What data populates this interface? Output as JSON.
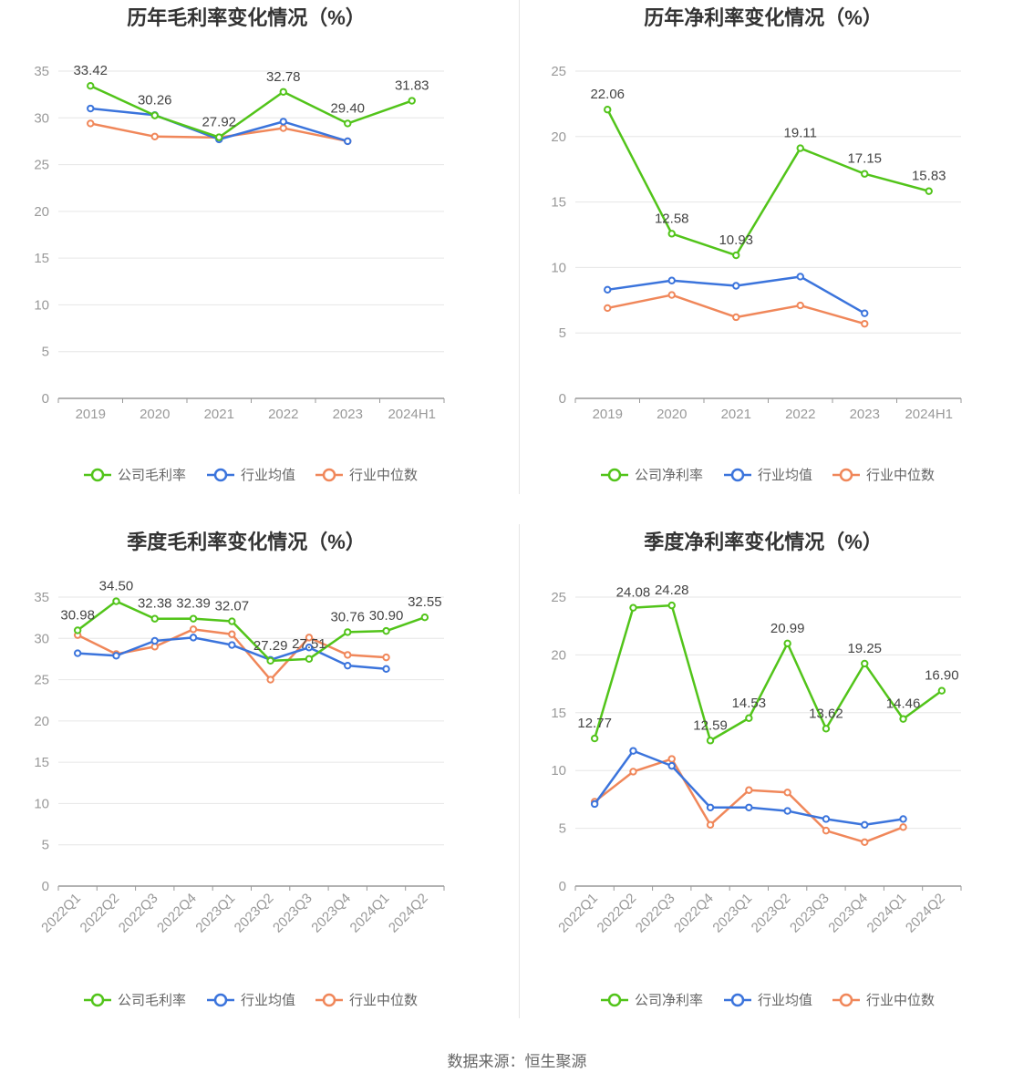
{
  "source_text": "数据来源：恒生聚源",
  "colors": {
    "company": "#52c41a",
    "avg": "#3b74dc",
    "median": "#f0875a",
    "grid": "#e6e6e6",
    "axis": "#999999"
  },
  "chart_data": [
    {
      "id": "annual-gross",
      "type": "line",
      "title": "历年毛利率变化情况（%）",
      "categories": [
        "2019",
        "2020",
        "2021",
        "2022",
        "2023",
        "2024H1"
      ],
      "ylim": [
        0,
        35
      ],
      "yticks": [
        0,
        5,
        10,
        15,
        20,
        25,
        30,
        35
      ],
      "x_label_rotate": false,
      "series": [
        {
          "name": "公司毛利率",
          "role": "company",
          "values": [
            33.42,
            30.26,
            27.92,
            32.78,
            29.4,
            31.83
          ],
          "labels": [
            "33.42",
            "30.26",
            "27.92",
            "32.78",
            "29.40",
            "31.83"
          ]
        },
        {
          "name": "行业均值",
          "role": "avg",
          "values": [
            31.0,
            30.3,
            27.7,
            29.6,
            27.5,
            null
          ]
        },
        {
          "name": "行业中位数",
          "role": "median",
          "values": [
            29.4,
            28.0,
            27.9,
            28.9,
            27.5,
            null
          ]
        }
      ]
    },
    {
      "id": "annual-net",
      "type": "line",
      "title": "历年净利率变化情况（%）",
      "categories": [
        "2019",
        "2020",
        "2021",
        "2022",
        "2023",
        "2024H1"
      ],
      "ylim": [
        0,
        25
      ],
      "yticks": [
        0,
        5,
        10,
        15,
        20,
        25
      ],
      "x_label_rotate": false,
      "series": [
        {
          "name": "公司净利率",
          "role": "company",
          "values": [
            22.06,
            12.58,
            10.93,
            19.11,
            17.15,
            15.83
          ],
          "labels": [
            "22.06",
            "12.58",
            "10.93",
            "19.11",
            "17.15",
            "15.83"
          ]
        },
        {
          "name": "行业均值",
          "role": "avg",
          "values": [
            8.3,
            9.0,
            8.6,
            9.3,
            6.5,
            null
          ]
        },
        {
          "name": "行业中位数",
          "role": "median",
          "values": [
            6.9,
            7.9,
            6.2,
            7.1,
            5.7,
            null
          ]
        }
      ]
    },
    {
      "id": "quarterly-gross",
      "type": "line",
      "title": "季度毛利率变化情况（%）",
      "categories": [
        "2022Q1",
        "2022Q2",
        "2022Q3",
        "2022Q4",
        "2023Q1",
        "2023Q2",
        "2023Q3",
        "2023Q4",
        "2024Q1",
        "2024Q2"
      ],
      "ylim": [
        0,
        35
      ],
      "yticks": [
        0,
        5,
        10,
        15,
        20,
        25,
        30,
        35
      ],
      "x_label_rotate": true,
      "series": [
        {
          "name": "公司毛利率",
          "role": "company",
          "values": [
            30.98,
            34.5,
            32.38,
            32.39,
            32.07,
            27.29,
            27.51,
            30.76,
            30.9,
            32.55
          ],
          "labels": [
            "30.98",
            "34.50",
            "32.38",
            "32.39",
            "32.07",
            "27.29",
            "27.51",
            "30.76",
            "30.90",
            "32.55"
          ]
        },
        {
          "name": "行业均值",
          "role": "avg",
          "values": [
            28.2,
            27.9,
            29.7,
            30.1,
            29.2,
            27.4,
            28.9,
            26.7,
            26.3,
            null
          ]
        },
        {
          "name": "行业中位数",
          "role": "median",
          "values": [
            30.4,
            28.1,
            29.0,
            31.1,
            30.5,
            25.0,
            30.1,
            28.0,
            27.7,
            null
          ]
        }
      ]
    },
    {
      "id": "quarterly-net",
      "type": "line",
      "title": "季度净利率变化情况（%）",
      "categories": [
        "2022Q1",
        "2022Q2",
        "2022Q3",
        "2022Q4",
        "2023Q1",
        "2023Q2",
        "2023Q3",
        "2023Q4",
        "2024Q1",
        "2024Q2"
      ],
      "ylim": [
        0,
        25
      ],
      "yticks": [
        0,
        5,
        10,
        15,
        20,
        25
      ],
      "x_label_rotate": true,
      "series": [
        {
          "name": "公司净利率",
          "role": "company",
          "values": [
            12.77,
            24.08,
            24.28,
            12.59,
            14.53,
            20.99,
            13.62,
            19.25,
            14.46,
            16.9
          ],
          "labels": [
            "12.77",
            "24.08",
            "24.28",
            "12.59",
            "14.53",
            "20.99",
            "13.62",
            "19.25",
            "14.46",
            "16.90"
          ]
        },
        {
          "name": "行业均值",
          "role": "avg",
          "values": [
            7.1,
            11.7,
            10.4,
            6.8,
            6.8,
            6.5,
            5.8,
            5.3,
            5.8,
            null
          ]
        },
        {
          "name": "行业中位数",
          "role": "median",
          "values": [
            7.3,
            9.9,
            11.0,
            5.3,
            8.3,
            8.1,
            4.8,
            3.8,
            5.1,
            null
          ]
        }
      ]
    }
  ]
}
